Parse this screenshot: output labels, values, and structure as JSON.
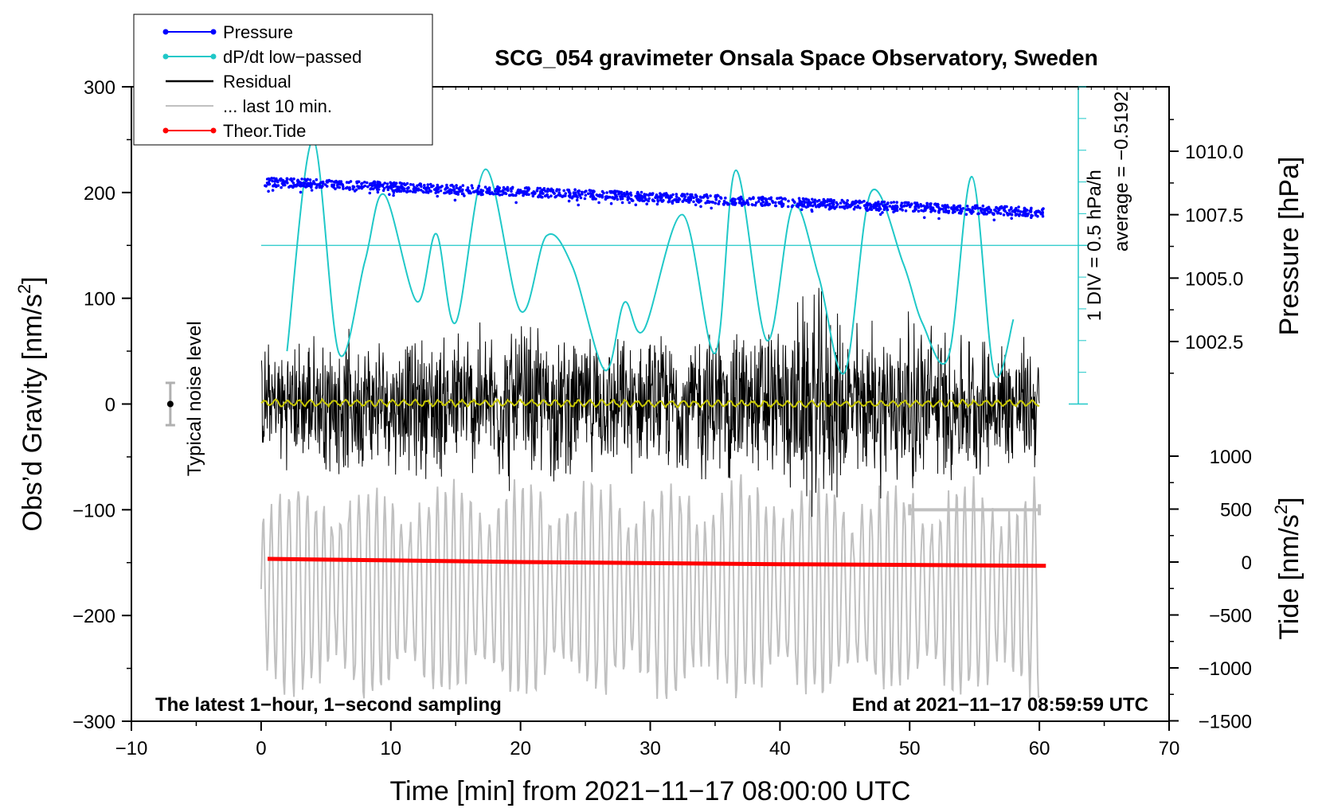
{
  "chart_data": {
    "type": "line",
    "title": "SCG_054 gravimeter Onsala Space Observatory, Sweden",
    "xlabel": "Time [min] from 2021−11−17 08:00:00 UTC",
    "ylabel_left": "Obs’d Gravity [nm/s",
    "ylabel_left_sup": "2",
    "ylabel_left_end": "]",
    "ylabel_pressure": "Pressure [hPa]",
    "ylabel_tide": "Tide [nm/s",
    "ylabel_tide_sup": "2",
    "ylabel_tide_end": "]",
    "xlim": [
      -10,
      70
    ],
    "ylim": [
      -300,
      300
    ],
    "pressure_lim": [
      1000.0,
      1012.5
    ],
    "tide_lim": [
      -1500,
      1500
    ],
    "x_ticks": [
      -10,
      0,
      10,
      20,
      30,
      40,
      50,
      60,
      70
    ],
    "x_tick_labels": [
      "−10",
      "0",
      "10",
      "20",
      "30",
      "40",
      "50",
      "60",
      "70"
    ],
    "y_ticks": [
      300,
      200,
      100,
      0,
      -100,
      -200,
      -300
    ],
    "y_tick_labels": [
      "300",
      "200",
      "100",
      "0",
      "−100",
      "−200",
      "−300"
    ],
    "pressure_ticks": [
      1010.0,
      1007.5,
      1005.0,
      1002.5
    ],
    "pressure_tick_labels": [
      "1010.0",
      "1007.5",
      "1005.0",
      "1002.5"
    ],
    "tide_ticks": [
      1000,
      500,
      0,
      -500,
      -1000,
      -1500
    ],
    "tide_tick_labels": [
      "1000",
      "500",
      "0",
      "−500",
      "−1000",
      "−1500"
    ],
    "legend": {
      "position": "top-left",
      "entries": [
        {
          "label": "Pressure",
          "color": "#0000ff",
          "marker": true
        },
        {
          "label": "dP/dt low−passed",
          "color": "#20c8c8",
          "marker": true
        },
        {
          "label": "Residual",
          "color": "#000000",
          "marker": false
        },
        {
          "label": "... last 10 min.",
          "color": "#c0c0c0",
          "marker": false
        },
        {
          "label": "Theor.Tide",
          "color": "#ff0000",
          "marker": true
        }
      ]
    },
    "series": [
      {
        "name": "Pressure",
        "axis": "pressure",
        "color": "#0000ff",
        "x": [
          0,
          10,
          20,
          30,
          40,
          50,
          60
        ],
        "values": [
          1008.8,
          1008.6,
          1008.4,
          1008.2,
          1008.0,
          1007.8,
          1007.6
        ]
      },
      {
        "name": "dP/dt low−passed",
        "axis": "gravity",
        "color": "#20c8c8",
        "x": [
          2,
          4,
          6,
          8,
          9.5,
          12,
          13.5,
          15,
          17.3,
          20,
          22,
          24,
          26.5,
          28,
          29.5,
          32.5,
          35,
          36.6,
          39,
          41,
          43,
          45,
          47,
          49.5,
          51,
          53,
          54.8,
          56.5,
          58
        ],
        "values": [
          50,
          250,
          48,
          135,
          198,
          97,
          161,
          77,
          222,
          88,
          159,
          130,
          32,
          96,
          70,
          179,
          48,
          221,
          60,
          187,
          120,
          30,
          200,
          133,
          76,
          45,
          215,
          30,
          80
        ]
      },
      {
        "name": "Residual",
        "axis": "gravity",
        "color": "#000000",
        "x": [
          0,
          5,
          10,
          15,
          20,
          25,
          30,
          35,
          40,
          42.7,
          45,
          50.5,
          55,
          60
        ],
        "envelope": [
          60,
          75,
          70,
          80,
          90,
          70,
          70,
          85,
          85,
          125,
          90,
          95,
          75,
          70
        ]
      },
      {
        "name": "Residual low-passed",
        "axis": "gravity",
        "color": "#c8c800",
        "x": [
          0,
          20,
          40,
          60
        ],
        "values": [
          1,
          1,
          0,
          1
        ]
      },
      {
        "name": "... last 10 min.",
        "axis": "gravity",
        "color": "#c0c0c0",
        "x": [
          0,
          4,
          10,
          20,
          30,
          40,
          50,
          55,
          60
        ],
        "values": [
          -175,
          -175,
          -175,
          -175,
          -175,
          -175,
          -175,
          -175,
          -175
        ]
      },
      {
        "name": "Theor.Tide",
        "axis": "tide",
        "color": "#ff0000",
        "x": [
          0.5,
          20,
          40,
          60.5
        ],
        "values": [
          30,
          0,
          -20,
          -35
        ]
      }
    ],
    "pressure_scale": {
      "line_label": "1 DIV = 0.5 hPa/h",
      "average_label": "average = −0.5192",
      "zero_level": 0,
      "average_level": 150,
      "top_level": 300,
      "div_size": 30,
      "x_position": 63
    },
    "noise_bar": {
      "label": "Typical noise level",
      "x": -7,
      "center": 0,
      "half_range": 20
    },
    "last10_bar": {
      "x_start": 50,
      "x_end": 60,
      "y": -100
    },
    "annotation_left": "The latest 1−hour, 1−second sampling",
    "annotation_right": "End at 2021−11−17 08:59:59 UTC"
  }
}
